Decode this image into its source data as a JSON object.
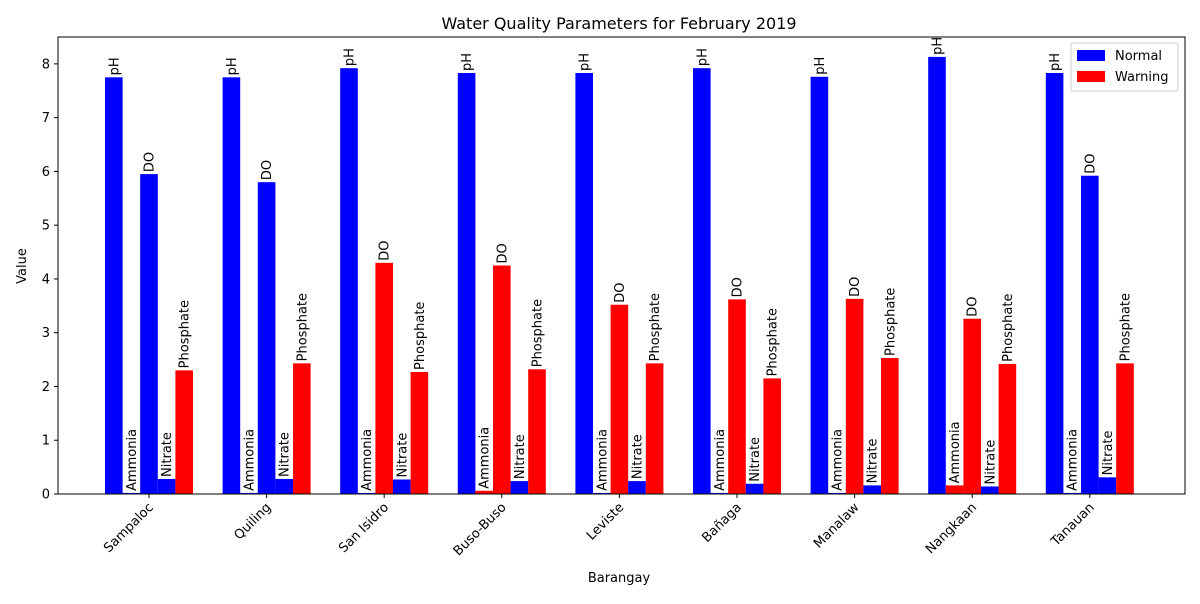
{
  "chart_data": {
    "type": "bar",
    "title": "Water Quality Parameters for February 2019",
    "xlabel": "Barangay",
    "ylabel": "Value",
    "ylim": [
      0,
      8.5
    ],
    "yticks": [
      0,
      1,
      2,
      3,
      4,
      5,
      6,
      7,
      8
    ],
    "categories": [
      "Sampaloc",
      "Quiling",
      "San Isidro",
      "Buso-Buso",
      "Leviste",
      "Bañaga",
      "Manalaw",
      "Nangkaan",
      "Tanauan"
    ],
    "parameters": [
      "pH",
      "Ammonia",
      "DO",
      "Nitrate",
      "Phosphate"
    ],
    "colors": {
      "Normal": "#0000ff",
      "Warning": "#ff0000"
    },
    "legend": {
      "position": "top-right",
      "entries": [
        "Normal",
        "Warning"
      ]
    },
    "grid": false,
    "values": [
      [
        7.75,
        0.02,
        5.95,
        0.28,
        2.3
      ],
      [
        7.75,
        0.02,
        5.8,
        0.28,
        2.43
      ],
      [
        7.92,
        0.02,
        4.3,
        0.27,
        2.27
      ],
      [
        7.83,
        0.06,
        4.25,
        0.24,
        2.32
      ],
      [
        7.83,
        0.02,
        3.52,
        0.24,
        2.43
      ],
      [
        7.92,
        0.02,
        3.62,
        0.19,
        2.15
      ],
      [
        7.76,
        0.02,
        3.63,
        0.16,
        2.53
      ],
      [
        8.13,
        0.16,
        3.26,
        0.14,
        2.42
      ],
      [
        7.83,
        0.02,
        5.92,
        0.31,
        2.43
      ]
    ],
    "status": [
      [
        "Normal",
        "Normal",
        "Normal",
        "Normal",
        "Warning"
      ],
      [
        "Normal",
        "Normal",
        "Normal",
        "Normal",
        "Warning"
      ],
      [
        "Normal",
        "Normal",
        "Warning",
        "Normal",
        "Warning"
      ],
      [
        "Normal",
        "Warning",
        "Warning",
        "Normal",
        "Warning"
      ],
      [
        "Normal",
        "Normal",
        "Warning",
        "Normal",
        "Warning"
      ],
      [
        "Normal",
        "Normal",
        "Warning",
        "Normal",
        "Warning"
      ],
      [
        "Normal",
        "Normal",
        "Warning",
        "Normal",
        "Warning"
      ],
      [
        "Normal",
        "Warning",
        "Warning",
        "Normal",
        "Warning"
      ],
      [
        "Normal",
        "Normal",
        "Normal",
        "Normal",
        "Warning"
      ]
    ]
  }
}
